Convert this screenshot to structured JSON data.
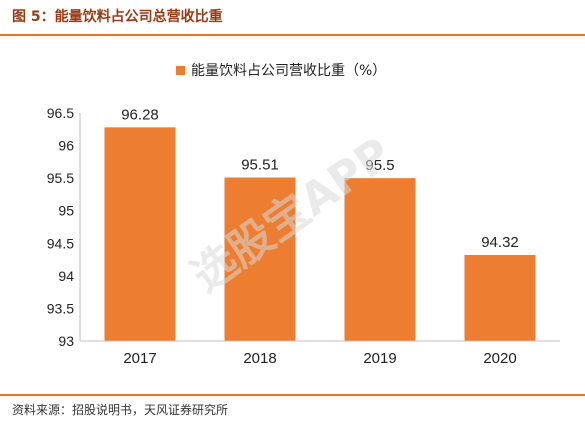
{
  "figure_title": "图 5：能量饮料占公司总营收比重",
  "source": "资料来源：招股说明书，天风证券研究所",
  "watermark": "选股宝APP",
  "colors": {
    "bar": "#ed7d31",
    "title": "#9a3a12",
    "rule": "#e8762a"
  },
  "chart_data": {
    "type": "bar",
    "categories": [
      "2017",
      "2018",
      "2019",
      "2020"
    ],
    "series": [
      {
        "name": "能量饮料占公司营收比重（%）",
        "values": [
          96.28,
          95.51,
          95.5,
          94.32
        ]
      }
    ],
    "data_labels": [
      "96.28",
      "95.51",
      "95.5",
      "94.32"
    ],
    "ylim": [
      93,
      96.5
    ],
    "yticks": [
      "93",
      "93.5",
      "94",
      "94.5",
      "95",
      "95.5",
      "96",
      "96.5"
    ],
    "legend_position": "top",
    "grid": false
  }
}
